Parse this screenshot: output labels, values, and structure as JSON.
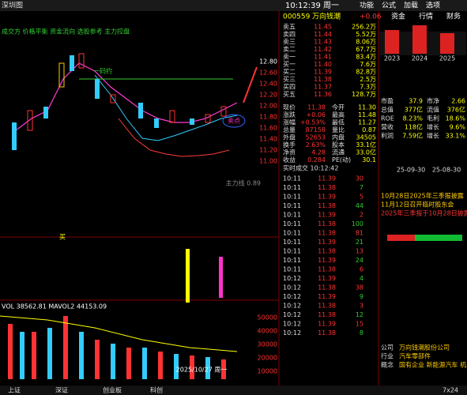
{
  "top_bar": {
    "left": "深圳图",
    "time": "10:12:39 周一",
    "menu": [
      "功能",
      "公式",
      "加载",
      "选项"
    ]
  },
  "chart": {
    "indicator": "成交方 价格平衡 资金流向 选股参考 主力控盘",
    "annotation": "一码约",
    "price_labels": [
      "12.80",
      "12.60",
      "12.40",
      "12.20",
      "12.00",
      "11.80",
      "11.60",
      "11.40",
      "11.20",
      "11.00"
    ],
    "ma_label": "主力线 0.89",
    "volume_label": "VOL 38562.81  MAVOL2 44153.09",
    "volume_ticks": [
      "50000",
      "40000",
      "30000",
      "20000",
      "10000"
    ],
    "date_label": "2025/10/27 周一",
    "mark_label": "买",
    "mark2": "卖点"
  },
  "quote": {
    "code": "000559",
    "name": "万向钱潮",
    "change": "+0.06",
    "book": [
      [
        "卖五",
        "11.45",
        "256.2万"
      ],
      [
        "卖四",
        "11.44",
        "5.52万"
      ],
      [
        "卖三",
        "11.43",
        "8.06万"
      ],
      [
        "卖二",
        "11.42",
        "67.7万"
      ],
      [
        "卖一",
        "11.41",
        "83.4万"
      ],
      [
        "买一",
        "11.40",
        "7.6万"
      ],
      [
        "买二",
        "11.39",
        "82.8万"
      ],
      [
        "买三",
        "11.38",
        "2.5万"
      ],
      [
        "买四",
        "11.37",
        "7.3万"
      ],
      [
        "买五",
        "11.36",
        "128.7万"
      ]
    ],
    "stats": [
      [
        "现价",
        "11.38",
        "今开",
        "11.30"
      ],
      [
        "涨跌",
        "+0.06",
        "最高",
        "11.48"
      ],
      [
        "涨幅",
        "+0.53%",
        "最低",
        "11.27"
      ],
      [
        "总量",
        "87158",
        "量比",
        "0.87"
      ],
      [
        "外盘",
        "52653",
        "内盘",
        "34505"
      ],
      [
        "换手",
        "2.63%",
        "股本",
        "33.1亿"
      ],
      [
        "净资",
        "4.28",
        "流通",
        "33.0亿"
      ],
      [
        "收益",
        "0.284",
        "PE(动)",
        "30.1"
      ]
    ],
    "trades_title": "实时成交 10:12:42",
    "trades": [
      [
        "10:11",
        "11.39",
        "30"
      ],
      [
        "10:11",
        "11.38",
        "7"
      ],
      [
        "10:11",
        "11.39",
        "5"
      ],
      [
        "10:11",
        "11.38",
        "44"
      ],
      [
        "10:11",
        "11.39",
        "2"
      ],
      [
        "10:11",
        "11.38",
        "100"
      ],
      [
        "10:11",
        "11.38",
        "81"
      ],
      [
        "10:11",
        "11.39",
        "21"
      ],
      [
        "10:11",
        "11.38",
        "13"
      ],
      [
        "10:11",
        "11.39",
        "24"
      ],
      [
        "10:11",
        "11.38",
        "6"
      ],
      [
        "10:12",
        "11.39",
        "4"
      ],
      [
        "10:12",
        "11.38",
        "38"
      ],
      [
        "10:12",
        "11.39",
        "9"
      ],
      [
        "10:12",
        "11.38",
        "3"
      ],
      [
        "10:12",
        "11.38",
        "12"
      ],
      [
        "10:12",
        "11.39",
        "15"
      ],
      [
        "10:12",
        "11.38",
        "8"
      ]
    ]
  },
  "side": {
    "tabs": [
      "资金",
      "行情",
      "财务"
    ],
    "years": [
      "2023",
      "2024",
      "2025"
    ],
    "rows": [
      [
        "市盈",
        "37.9",
        "市净",
        "2.66"
      ],
      [
        "总值",
        "377亿",
        "流值",
        "376亿"
      ],
      [
        "ROE",
        "8.23%",
        "毛利",
        "18.6%"
      ],
      [
        "营收",
        "118亿",
        "增长",
        "9.6%"
      ],
      [
        "利润",
        "7.59亿",
        "增长",
        "33.1%"
      ]
    ],
    "dates": [
      "25-09-30",
      "25-08-30"
    ],
    "news": [
      "10月28日2025年三季报披露",
      "11月12日召开临时股东会",
      "2025年三季报于10月28日披露"
    ],
    "info": [
      [
        "公司",
        "万向钱潮股份公司"
      ],
      [
        "行业",
        "汽车零部件"
      ],
      [
        "概念",
        "国有企业 新能源汽车 机器人"
      ]
    ]
  },
  "status": {
    "items": [
      "上证",
      "深证",
      "创业板",
      "科创"
    ],
    "time": "7x24"
  }
}
